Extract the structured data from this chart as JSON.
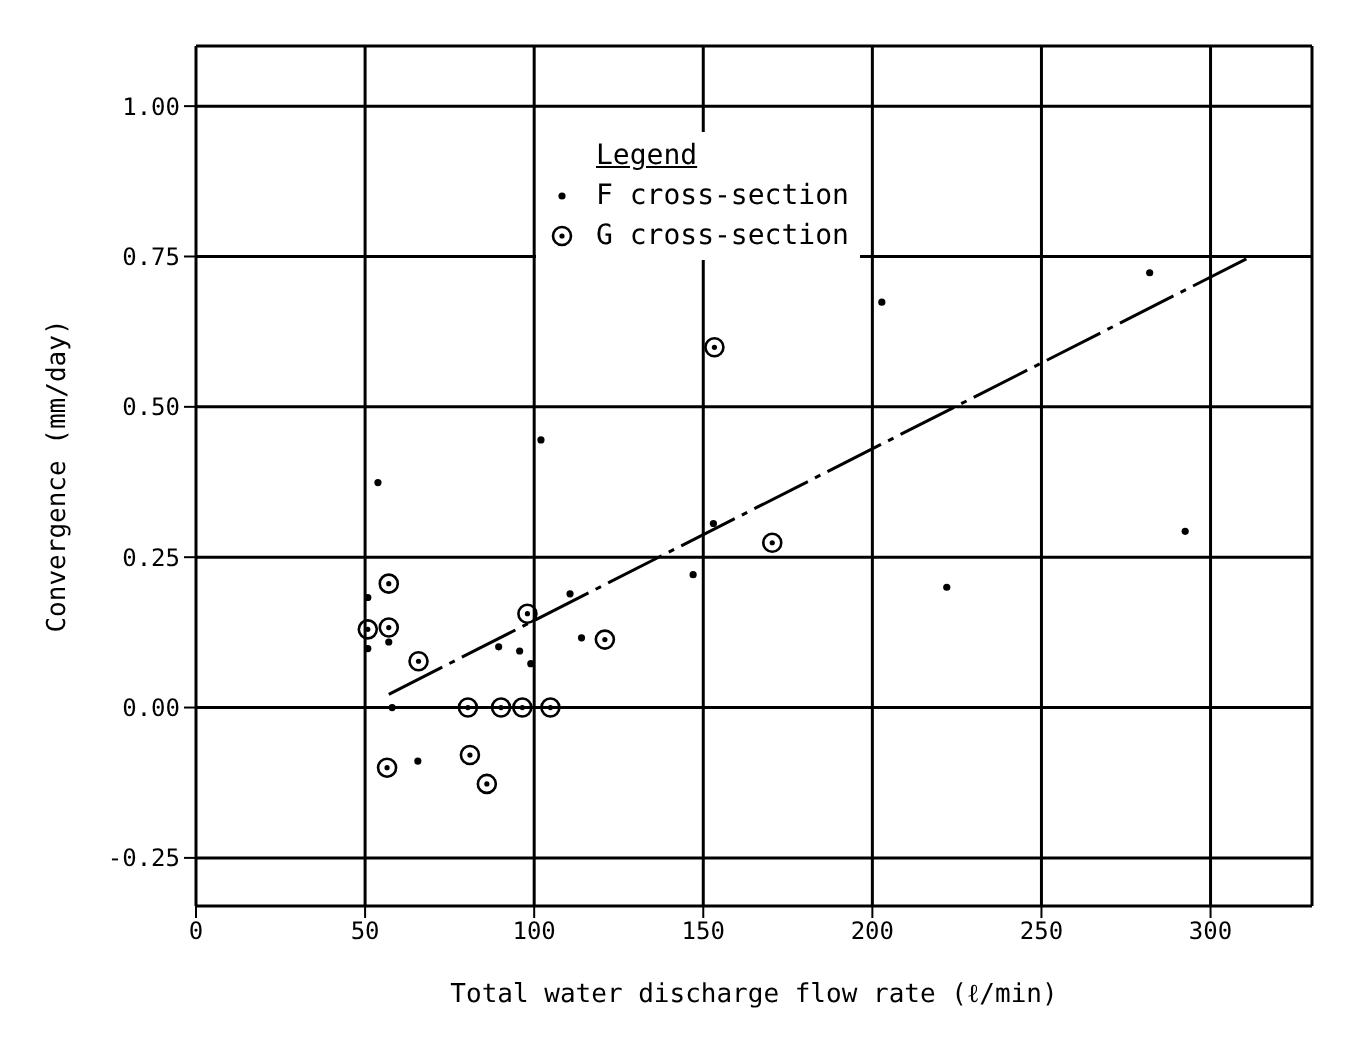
{
  "chart_data": {
    "type": "scatter",
    "xlabel": "Total water discharge flow rate (ℓ/min)",
    "ylabel": "Convergence (mm/day)",
    "legend_title": "Legend",
    "legend": "top",
    "xlim": [
      0,
      330
    ],
    "xticks": [
      0,
      50,
      100,
      150,
      200,
      250,
      300
    ],
    "ylim": [
      -0.33,
      1.1
    ],
    "yticks": [
      {
        "value": -0.25,
        "label": "-0.25"
      },
      {
        "value": 0,
        "label": "0.00"
      },
      {
        "value": 0.25,
        "label": "0.25"
      },
      {
        "value": 0.5,
        "label": "0.50"
      },
      {
        "value": 0.75,
        "label": "0.75"
      },
      {
        "value": 1,
        "label": "1.00"
      }
    ],
    "grid": true,
    "series": [
      {
        "name": "F cross-section",
        "color": "#000000",
        "marker": "circle",
        "x": [
          53.8,
          50.8,
          50.8,
          57,
          58,
          65.6,
          89.5,
          95.7,
          99,
          102,
          110.6,
          114,
          147,
          153,
          202.8,
          222,
          282,
          292.5
        ],
        "values": [
          0.374,
          0.183,
          0.098,
          0.109,
          0,
          -0.089,
          0.101,
          0.094,
          0.073,
          0.445,
          0.189,
          0.116,
          0.221,
          0.306,
          0.674,
          0.2,
          0.723,
          0.293
        ]
      },
      {
        "name": "G cross-section",
        "color": "#000000",
        "marker": "circle",
        "x": [
          50.8,
          57,
          57,
          56.5,
          65.8,
          80.4,
          81,
          86,
          90.2,
          96.5,
          98,
          104.8,
          120.9,
          153.3,
          170.4
        ],
        "values": [
          0.13,
          0.206,
          0.133,
          -0.1,
          0.077,
          0,
          -0.079,
          -0.127,
          0,
          0,
          0.156,
          0,
          0.113,
          0.599,
          0.274
        ]
      },
      {
        "type": "line",
        "color": "#000000",
        "line_style": "dashed",
        "marker": "none",
        "x": [
          57,
          310.6
        ],
        "values": [
          0.022,
          0.746
        ]
      }
    ]
  }
}
